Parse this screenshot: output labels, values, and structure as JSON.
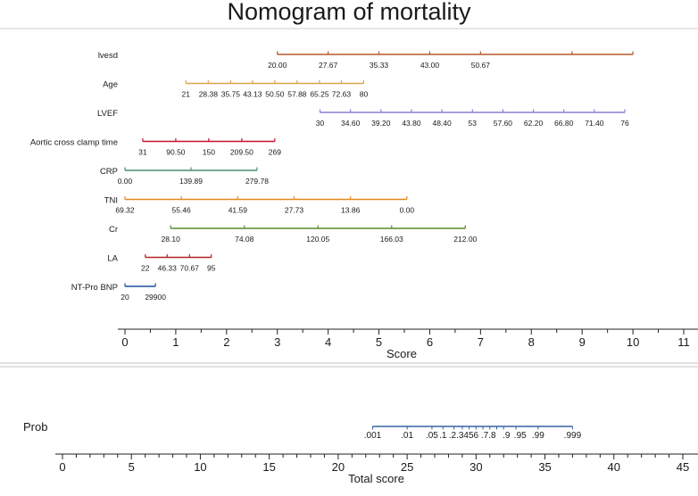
{
  "title": "Nomogram of mortality",
  "colors": {
    "title": "#1f3864",
    "axis": "#222222",
    "panel_border": "#cccccc",
    "divider": "#d9d9d9",
    "prob": "#3465a4"
  },
  "chart_data": [
    {
      "type": "nomogram",
      "name": "points-panel",
      "xlabel": "Score",
      "xlim": [
        0,
        11
      ],
      "ticks": [
        0,
        1,
        2,
        3,
        4,
        5,
        6,
        7,
        8,
        9,
        10,
        11
      ],
      "minor_step": 0.5,
      "variables": [
        {
          "name": "lvesd",
          "label": "lvesd",
          "color": "#b5582b",
          "start": 3.0,
          "end": 10.0,
          "ticks": [
            3.0,
            4.0,
            5.0,
            6.0,
            7.0,
            8.8,
            10.0
          ],
          "tick_labels": [
            {
              "text": "20.00",
              "score": 3.0
            },
            {
              "text": "27.67",
              "score": 4.0
            },
            {
              "text": "35.33",
              "score": 5.0
            },
            {
              "text": "43.00",
              "score": 6.0
            },
            {
              "text": "50.67",
              "score": 7.0
            }
          ]
        },
        {
          "name": "age",
          "label": "Age",
          "color": "#d8a24c",
          "start": 1.2,
          "end": 4.7,
          "ticks": [
            1.2,
            1.64,
            2.08,
            2.51,
            2.95,
            3.39,
            3.83,
            4.26,
            4.7
          ],
          "tick_labels": [
            {
              "text": "21",
              "score": 1.2
            },
            {
              "text": "28.38",
              "score": 1.64
            },
            {
              "text": "35.75",
              "score": 2.08
            },
            {
              "text": "43.13",
              "score": 2.51
            },
            {
              "text": "50.50",
              "score": 2.95
            },
            {
              "text": "57.88",
              "score": 3.39
            },
            {
              "text": "65.25",
              "score": 3.83
            },
            {
              "text": "72.63",
              "score": 4.26
            },
            {
              "text": "80",
              "score": 4.7
            }
          ]
        },
        {
          "name": "lvef",
          "label": "LVEF",
          "color": "#8b7fd6",
          "start": 3.84,
          "end": 9.84,
          "ticks": [
            3.84,
            4.44,
            5.04,
            5.64,
            6.24,
            6.84,
            7.44,
            8.04,
            8.64,
            9.24,
            9.84
          ],
          "tick_labels": [
            {
              "text": "30",
              "score": 3.84
            },
            {
              "text": "34.60",
              "score": 4.44
            },
            {
              "text": "39.20",
              "score": 5.04
            },
            {
              "text": "43.80",
              "score": 5.64
            },
            {
              "text": "48.40",
              "score": 6.24
            },
            {
              "text": "53",
              "score": 6.84
            },
            {
              "text": "57.60",
              "score": 7.44
            },
            {
              "text": "62.20",
              "score": 8.04
            },
            {
              "text": "66.80",
              "score": 8.64
            },
            {
              "text": "71.40",
              "score": 9.24
            },
            {
              "text": "76",
              "score": 9.84
            }
          ]
        },
        {
          "name": "aortic-cross-clamp-time",
          "label": "Aortic cross clamp time",
          "color": "#c8102e",
          "start": 0.35,
          "end": 2.95,
          "ticks": [
            0.35,
            1.0,
            1.65,
            2.3,
            2.95
          ],
          "tick_labels": [
            {
              "text": "31",
              "score": 0.35
            },
            {
              "text": "90.50",
              "score": 1.0
            },
            {
              "text": "150",
              "score": 1.65
            },
            {
              "text": "209.50",
              "score": 2.3
            },
            {
              "text": "269",
              "score": 2.95
            }
          ]
        },
        {
          "name": "crp",
          "label": "CRP",
          "color": "#4a8f6e",
          "start": 0.0,
          "end": 2.6,
          "ticks": [
            0.0,
            1.3,
            2.6
          ],
          "tick_labels": [
            {
              "text": "0.00",
              "score": 0.0
            },
            {
              "text": "139.89",
              "score": 1.3
            },
            {
              "text": "279.78",
              "score": 2.6
            }
          ]
        },
        {
          "name": "tni",
          "label": "TNI",
          "color": "#e58a1f",
          "start": 0.0,
          "end": 5.55,
          "ticks": [
            0.0,
            1.11,
            2.22,
            3.33,
            4.44,
            5.55
          ],
          "tick_labels": [
            {
              "text": "69.32",
              "score": 0.0
            },
            {
              "text": "55.46",
              "score": 1.11
            },
            {
              "text": "41.59",
              "score": 2.22
            },
            {
              "text": "27.73",
              "score": 3.33
            },
            {
              "text": "13.86",
              "score": 4.44
            },
            {
              "text": "0.00",
              "score": 5.55
            }
          ]
        },
        {
          "name": "cr",
          "label": "Cr",
          "color": "#5a8a2e",
          "start": 0.9,
          "end": 6.7,
          "ticks": [
            0.9,
            2.35,
            3.8,
            5.25,
            6.7
          ],
          "tick_labels": [
            {
              "text": "28.10",
              "score": 0.9
            },
            {
              "text": "74.08",
              "score": 2.35
            },
            {
              "text": "120.05",
              "score": 3.8
            },
            {
              "text": "166.03",
              "score": 5.25
            },
            {
              "text": "212.00",
              "score": 6.7
            }
          ]
        },
        {
          "name": "la",
          "label": "LA",
          "color": "#b22222",
          "start": 0.4,
          "end": 1.7,
          "ticks": [
            0.4,
            0.83,
            1.27,
            1.7
          ],
          "tick_labels": [
            {
              "text": "22",
              "score": 0.4
            },
            {
              "text": "46.33",
              "score": 0.83
            },
            {
              "text": "70.67",
              "score": 1.27
            },
            {
              "text": "95",
              "score": 1.7
            }
          ]
        },
        {
          "name": "nt-pro-bnp",
          "label": "NT-Pro BNP",
          "color": "#1f4e9c",
          "start": 0.0,
          "end": 0.6,
          "ticks": [
            0.0,
            0.6
          ],
          "tick_labels": [
            {
              "text": "20",
              "score": 0.0
            },
            {
              "text": "29900",
              "score": 0.6
            }
          ]
        }
      ]
    },
    {
      "type": "nomogram",
      "name": "total-score-panel",
      "xlabel": "Total score",
      "xlim": [
        0,
        45
      ],
      "ticks": [
        0,
        5,
        10,
        15,
        20,
        25,
        30,
        35,
        40,
        45
      ],
      "minor_step": 1,
      "prob": {
        "label": "Prob",
        "start": 22.5,
        "end": 37.0,
        "ticks": [
          22.5,
          25.0,
          26.8,
          27.6,
          28.4,
          29.0,
          29.5,
          30.0,
          30.5,
          31.0,
          31.5,
          32.0,
          32.9,
          34.5,
          37.0
        ],
        "tick_labels": [
          {
            "text": ".001",
            "score": 22.5
          },
          {
            "text": ".01",
            "score": 25.0
          },
          {
            "text": ".05",
            "score": 26.8
          },
          {
            "text": ".1",
            "score": 27.6
          },
          {
            "text": ".2.3456",
            "score": 29.1
          },
          {
            "text": ".7.8",
            "score": 30.9
          },
          {
            "text": ".9",
            "score": 32.2
          },
          {
            "text": ".95",
            "score": 33.2
          },
          {
            "text": ".99",
            "score": 34.5
          },
          {
            "text": ".999",
            "score": 37.0
          }
        ]
      }
    }
  ]
}
